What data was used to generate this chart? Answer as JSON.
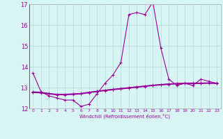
{
  "x": [
    0,
    1,
    2,
    3,
    4,
    5,
    6,
    7,
    8,
    9,
    10,
    11,
    12,
    13,
    14,
    15,
    16,
    17,
    18,
    19,
    20,
    21,
    22,
    23
  ],
  "line1": [
    13.7,
    12.8,
    12.6,
    12.5,
    12.4,
    12.4,
    12.1,
    12.2,
    12.7,
    13.2,
    13.6,
    14.2,
    16.5,
    16.6,
    16.5,
    17.1,
    14.9,
    13.4,
    13.1,
    13.2,
    13.1,
    13.4,
    13.3,
    13.2
  ],
  "line2": [
    12.8,
    12.78,
    12.72,
    12.68,
    12.68,
    12.7,
    12.72,
    12.78,
    12.83,
    12.88,
    12.92,
    12.96,
    13.0,
    13.04,
    13.08,
    13.12,
    13.15,
    13.18,
    13.2,
    13.22,
    13.22,
    13.22,
    13.23,
    13.22
  ],
  "line3": [
    12.78,
    12.76,
    12.71,
    12.67,
    12.67,
    12.69,
    12.71,
    12.77,
    12.82,
    12.87,
    12.91,
    12.95,
    12.99,
    13.03,
    13.07,
    13.11,
    13.14,
    13.17,
    13.19,
    13.21,
    13.21,
    13.21,
    13.22,
    13.21
  ],
  "line4": [
    12.76,
    12.74,
    12.69,
    12.65,
    12.65,
    12.67,
    12.69,
    12.75,
    12.8,
    12.85,
    12.89,
    12.93,
    12.97,
    13.01,
    13.05,
    13.09,
    13.12,
    13.15,
    13.17,
    13.19,
    13.19,
    13.19,
    13.2,
    13.19
  ],
  "color": "#990099",
  "bg_color": "#d8f5f5",
  "grid_color": "#b8dede",
  "xlabel": "Windchill (Refroidissement éolien,°C)",
  "ylim": [
    12,
    17
  ],
  "xlim": [
    -0.5,
    23.5
  ],
  "yticks": [
    12,
    13,
    14,
    15,
    16,
    17
  ],
  "xticks": [
    0,
    1,
    2,
    3,
    4,
    5,
    6,
    7,
    8,
    9,
    10,
    11,
    12,
    13,
    14,
    15,
    16,
    17,
    18,
    19,
    20,
    21,
    22,
    23
  ]
}
